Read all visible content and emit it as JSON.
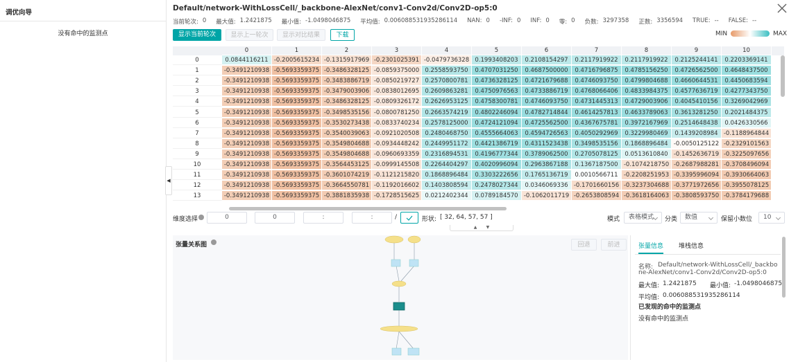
{
  "sidebar": {
    "title": "调优向导",
    "message": "没有命中的监测点"
  },
  "header": {
    "title": "Default/network-WithLossCell/_backbone-AlexNet/conv1-Conv2d/Conv2D-op5:0",
    "stats": [
      {
        "label": "当前轮次:",
        "value": "0"
      },
      {
        "label": "最大值:",
        "value": "1.2421875"
      },
      {
        "label": "最小值:",
        "value": "-1.0498046875"
      },
      {
        "label": "平均值:",
        "value": "0.006088531935286114"
      },
      {
        "label": "NAN:",
        "value": "0"
      },
      {
        "label": "-INF:",
        "value": "0"
      },
      {
        "label": "INF:",
        "value": "0"
      },
      {
        "label": "零:",
        "value": "0"
      },
      {
        "label": "负数:",
        "value": "3297358"
      },
      {
        "label": "正数:",
        "value": "3356594"
      },
      {
        "label": "TRUE:",
        "value": "--"
      },
      {
        "label": "FALSE:",
        "value": "--"
      }
    ]
  },
  "buttons": [
    "显示当前轮次",
    "显示上一轮次",
    "显示对比结果",
    "下载"
  ],
  "legend": {
    "min": "MIN",
    "max": "MAX"
  },
  "table": {
    "columns": [
      "0",
      "1",
      "2",
      "3",
      "4",
      "5",
      "6",
      "7",
      "8",
      "9",
      "10"
    ],
    "rows": [
      {
        "index": "0",
        "cells": [
          "0.0844116211",
          "-0.2005615234",
          "-0.1315917969",
          "-0.2301025391",
          "-0.0479736328",
          "0.1993408203",
          "0.2108154297",
          "0.2117919922",
          "0.2117919922",
          "0.2125244141",
          "0.2203369141"
        ]
      },
      {
        "index": "1",
        "cells": [
          "-0.3491210938",
          "-0.5693359375",
          "-0.3486328125",
          "-0.0859375000",
          "0.2558593750",
          "0.4707031250",
          "0.4687500000",
          "0.4716796875",
          "0.4785156250",
          "0.4726562500",
          "0.4648437500"
        ]
      },
      {
        "index": "2",
        "cells": [
          "-0.3491210938",
          "-0.5693359375",
          "-0.3483886719",
          "-0.0850219727",
          "0.2570800781",
          "0.4736328125",
          "0.4721679688",
          "0.4746093750",
          "0.4799804688",
          "0.4660644531",
          "0.4450683594"
        ]
      },
      {
        "index": "3",
        "cells": [
          "-0.3491210938",
          "-0.5693359375",
          "-0.3479003906",
          "-0.0838012695",
          "0.2609863281",
          "0.4750976563",
          "0.4733886719",
          "0.4768066406",
          "0.4833984375",
          "0.4577636719",
          "0.4277343750"
        ]
      },
      {
        "index": "4",
        "cells": [
          "-0.3491210938",
          "-0.5693359375",
          "-0.3486328125",
          "-0.0809326172",
          "0.2626953125",
          "0.4758300781",
          "0.4746093750",
          "0.4731445313",
          "0.4729003906",
          "0.4045410156",
          "0.3269042969"
        ]
      },
      {
        "index": "5",
        "cells": [
          "-0.3491210938",
          "-0.5693359375",
          "-0.3498535156",
          "-0.0800781250",
          "0.2663574219",
          "0.4802246094",
          "0.4782714844",
          "0.4614257813",
          "0.4633789063",
          "0.3613281250",
          "0.2021484375"
        ]
      },
      {
        "index": "6",
        "cells": [
          "-0.3491210938",
          "-0.5693359375",
          "-0.3530273438",
          "-0.0833740234",
          "0.2578125000",
          "0.4724121094",
          "0.4725562500",
          "0.4367675781",
          "0.3972167969",
          "0.2514648438",
          "0.0426330566"
        ]
      },
      {
        "index": "7",
        "cells": [
          "-0.3491210938",
          "-0.5693359375",
          "-0.3540039063",
          "-0.0921020508",
          "0.2480468750",
          "0.4555664063",
          "0.4594726563",
          "0.4050292969",
          "0.3229980469",
          "0.1439208984",
          "-0.1188964844"
        ]
      },
      {
        "index": "8",
        "cells": [
          "-0.3491210938",
          "-0.5693359375",
          "-0.3549804688",
          "-0.0934448242",
          "0.2449951172",
          "0.4421386719",
          "0.4311523438",
          "0.3498535156",
          "0.1868896484",
          "-0.0050125122",
          "-0.2329101563"
        ]
      },
      {
        "index": "9",
        "cells": [
          "-0.3491210938",
          "-0.5693359375",
          "-0.3549804688",
          "-0.0960693359",
          "0.2316894531",
          "0.4196777344",
          "0.3789062500",
          "0.2705078125",
          "0.0513610840",
          "-0.1452636719",
          "-0.3225097656"
        ]
      },
      {
        "index": "10",
        "cells": [
          "-0.3491210938",
          "-0.5693359375",
          "-0.3564453125",
          "-0.0999145508",
          "0.2264404297",
          "0.4020996094",
          "0.2963867188",
          "0.1367187500",
          "-0.1074218750",
          "-0.2687988281",
          "-0.3708496094"
        ]
      },
      {
        "index": "11",
        "cells": [
          "-0.3491210938",
          "-0.5693359375",
          "-0.3601074219",
          "-0.1121215820",
          "0.1868896484",
          "0.3303222656",
          "0.1765136719",
          "0.0010566711",
          "-0.2208251953",
          "-0.3395996094",
          "-0.3930664063"
        ]
      },
      {
        "index": "12",
        "cells": [
          "-0.3491210938",
          "-0.5693359375",
          "-0.3664550781",
          "-0.1192016602",
          "0.1403808594",
          "0.2478027344",
          "0.0346069336",
          "-0.1701660156",
          "-0.3237304688",
          "-0.3771972656",
          "-0.3955078125"
        ]
      },
      {
        "index": "13",
        "cells": [
          "-0.3491210938",
          "-0.5693359375",
          "-0.3881835938",
          "-0.1728515625",
          "0.0212402344",
          "0.0789184570",
          "-0.1062011719",
          "-0.2653808594",
          "-0.3618164063",
          "-0.3808593750",
          "-0.3784179688"
        ]
      }
    ]
  },
  "dimension": {
    "label": "维度选择",
    "inputs": [
      "0",
      "0",
      ":",
      ":"
    ],
    "separator": "/",
    "shape_label": "形状:",
    "shape": "[ 32, 64, 57, 57 ]"
  },
  "controls": {
    "mode_label": "模式",
    "mode": "表格模式",
    "category_label": "分类",
    "category": "数值",
    "decimals_label": "保留小数位",
    "decimals": "10"
  },
  "graph": {
    "title": "张量关系图",
    "back": "回退",
    "forward": "前进"
  },
  "tensor_info": {
    "tabs": [
      "张量信息",
      "堆栈信息"
    ],
    "name_label": "名称:",
    "name": "Default/network-WithLossCell/_backbone-AlexNet/conv1-Conv2d/Conv2D-op5:0",
    "max_label": "最大值:",
    "max": "1.2421875",
    "min_label": "最小值:",
    "min": "-1.0498046875",
    "mean_label": "平均值:",
    "mean": "0.006088531935286114",
    "hits_title": "已发现的命中的监测点",
    "hits_message": "没有命中的监测点"
  }
}
